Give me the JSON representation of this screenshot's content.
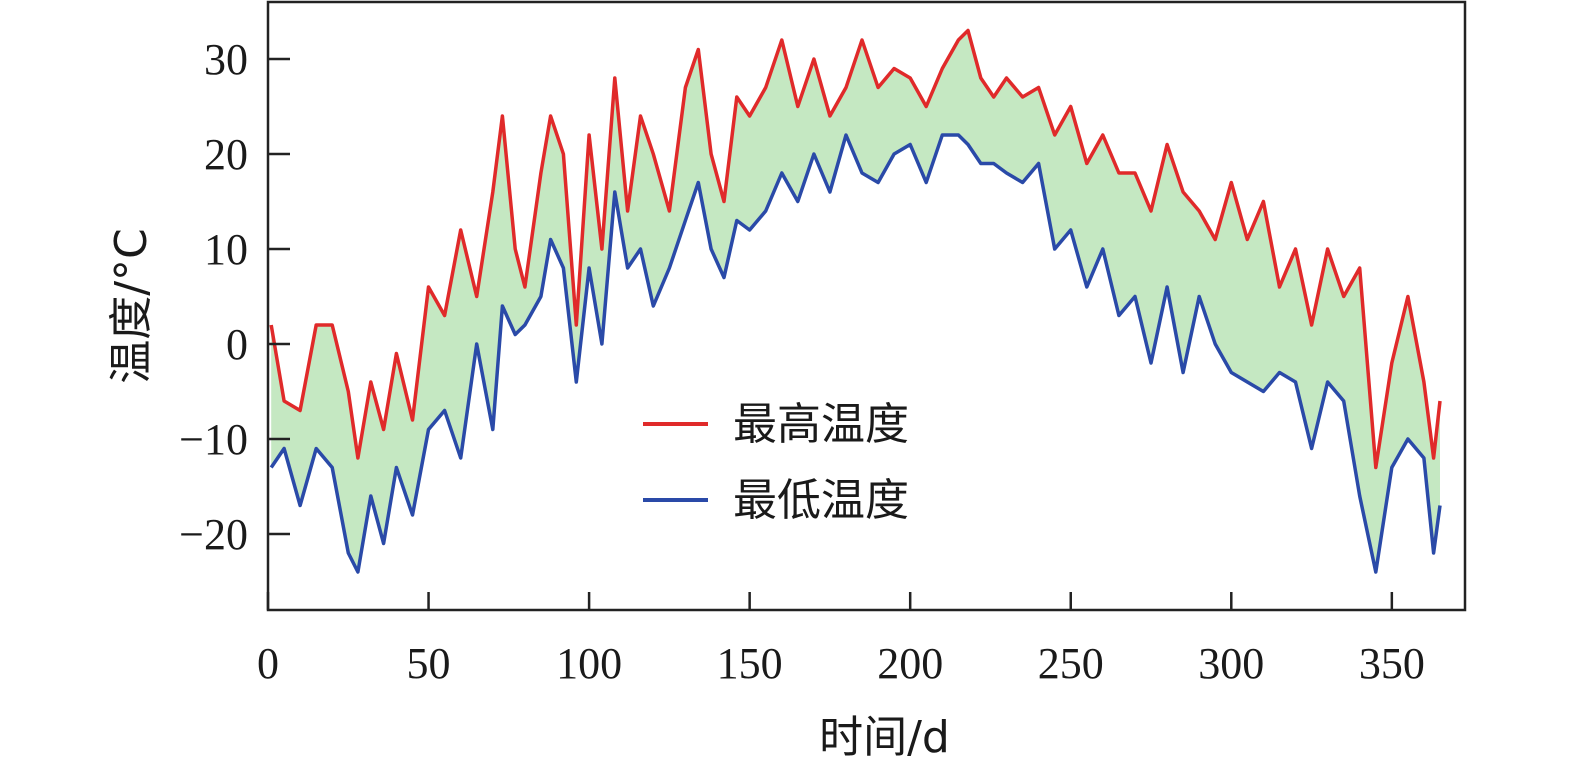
{
  "chart_data": {
    "type": "line",
    "title": "",
    "xlabel": "时间/d",
    "ylabel": "温度/°C",
    "xlim": [
      0,
      365
    ],
    "ylim": [
      -28,
      36
    ],
    "xticks": [
      0,
      50,
      100,
      150,
      200,
      250,
      300,
      350
    ],
    "xtick_labels": [
      "0",
      "50",
      "100",
      "150",
      "200",
      "250",
      "300",
      "350"
    ],
    "yticks": [
      -20,
      -10,
      0,
      10,
      20,
      30
    ],
    "ytick_labels": [
      "−20",
      "−10",
      "0",
      "10",
      "20",
      "30"
    ],
    "grid": false,
    "legend_position": "center",
    "fill_between": {
      "color": "#c5e8c2",
      "between": [
        "最高温度",
        "最低温度"
      ]
    },
    "series": [
      {
        "name": "最高温度",
        "color": "#e02a2a",
        "x": [
          1,
          5,
          10,
          15,
          20,
          25,
          28,
          32,
          36,
          40,
          45,
          50,
          55,
          60,
          65,
          70,
          73,
          77,
          80,
          85,
          88,
          92,
          96,
          100,
          104,
          108,
          112,
          116,
          120,
          125,
          130,
          134,
          138,
          142,
          146,
          150,
          155,
          160,
          165,
          170,
          175,
          180,
          185,
          190,
          195,
          200,
          205,
          210,
          215,
          218,
          222,
          226,
          230,
          235,
          240,
          245,
          250,
          255,
          260,
          265,
          270,
          275,
          280,
          285,
          290,
          295,
          300,
          305,
          310,
          315,
          320,
          325,
          330,
          335,
          340,
          345,
          350,
          355,
          360,
          363,
          365
        ],
        "y": [
          2,
          -6,
          -7,
          2,
          2,
          -5,
          -12,
          -4,
          -9,
          -1,
          -8,
          6,
          3,
          12,
          5,
          16,
          24,
          10,
          6,
          18,
          24,
          20,
          2,
          22,
          10,
          28,
          14,
          24,
          20,
          14,
          27,
          31,
          20,
          15,
          26,
          24,
          27,
          32,
          25,
          30,
          24,
          27,
          32,
          27,
          29,
          28,
          25,
          29,
          32,
          33,
          28,
          26,
          28,
          26,
          27,
          22,
          25,
          19,
          22,
          18,
          18,
          14,
          21,
          16,
          14,
          11,
          17,
          11,
          15,
          6,
          10,
          2,
          10,
          5,
          8,
          -13,
          -2,
          5,
          -4,
          -12,
          -6
        ]
      },
      {
        "name": "最低温度",
        "color": "#2a4aa8",
        "x": [
          1,
          5,
          10,
          15,
          20,
          25,
          28,
          32,
          36,
          40,
          45,
          50,
          55,
          60,
          65,
          70,
          73,
          77,
          80,
          85,
          88,
          92,
          96,
          100,
          104,
          108,
          112,
          116,
          120,
          125,
          130,
          134,
          138,
          142,
          146,
          150,
          155,
          160,
          165,
          170,
          175,
          180,
          185,
          190,
          195,
          200,
          205,
          210,
          215,
          218,
          222,
          226,
          230,
          235,
          240,
          245,
          250,
          255,
          260,
          265,
          270,
          275,
          280,
          285,
          290,
          295,
          300,
          305,
          310,
          315,
          320,
          325,
          330,
          335,
          340,
          345,
          350,
          355,
          360,
          363,
          365
        ],
        "y": [
          -13,
          -11,
          -17,
          -11,
          -13,
          -22,
          -24,
          -16,
          -21,
          -13,
          -18,
          -9,
          -7,
          -12,
          0,
          -9,
          4,
          1,
          2,
          5,
          11,
          8,
          -4,
          8,
          0,
          16,
          8,
          10,
          4,
          8,
          13,
          17,
          10,
          7,
          13,
          12,
          14,
          18,
          15,
          20,
          16,
          22,
          18,
          17,
          20,
          21,
          17,
          22,
          22,
          21,
          19,
          19,
          18,
          17,
          19,
          10,
          12,
          6,
          10,
          3,
          5,
          -2,
          6,
          -3,
          5,
          0,
          -3,
          -4,
          -5,
          -3,
          -4,
          -11,
          -4,
          -6,
          -16,
          -24,
          -13,
          -10,
          -12,
          -22,
          -17
        ]
      }
    ]
  }
}
